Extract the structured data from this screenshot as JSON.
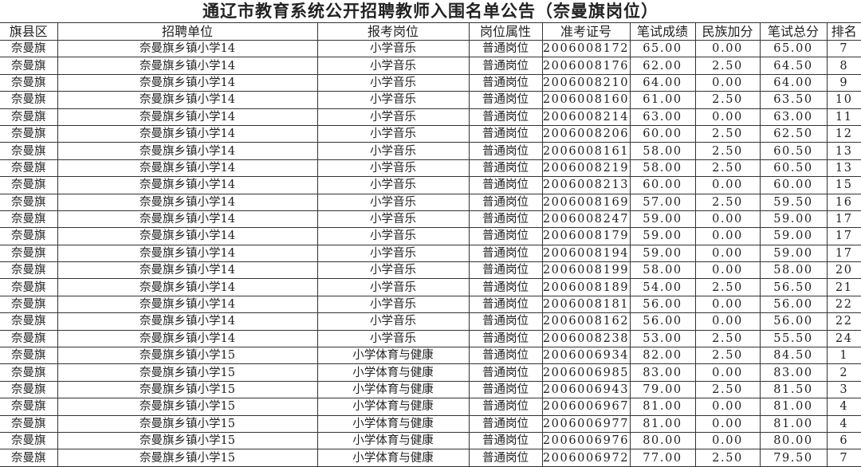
{
  "title": "通辽市教育系统公开招聘教师入围名单公告（奈曼旗岗位）",
  "headers": [
    "旗县区",
    "招聘单位",
    "报考岗位",
    "岗位属性",
    "准考证号",
    "笔试成绩",
    "民族加分",
    "笔试总分",
    "排名"
  ],
  "rows": [
    [
      "奈曼旗",
      "奈曼旗乡镇小学14",
      "小学音乐",
      "普通岗位",
      "2006008172",
      "65.00",
      "0.00",
      "65.00",
      "7"
    ],
    [
      "奈曼旗",
      "奈曼旗乡镇小学14",
      "小学音乐",
      "普通岗位",
      "2006008176",
      "62.00",
      "2.50",
      "64.50",
      "8"
    ],
    [
      "奈曼旗",
      "奈曼旗乡镇小学14",
      "小学音乐",
      "普通岗位",
      "2006008210",
      "64.00",
      "0.00",
      "64.00",
      "9"
    ],
    [
      "奈曼旗",
      "奈曼旗乡镇小学14",
      "小学音乐",
      "普通岗位",
      "2006008160",
      "61.00",
      "2.50",
      "63.50",
      "10"
    ],
    [
      "奈曼旗",
      "奈曼旗乡镇小学14",
      "小学音乐",
      "普通岗位",
      "2006008214",
      "63.00",
      "0.00",
      "63.00",
      "11"
    ],
    [
      "奈曼旗",
      "奈曼旗乡镇小学14",
      "小学音乐",
      "普通岗位",
      "2006008206",
      "60.00",
      "2.50",
      "62.50",
      "12"
    ],
    [
      "奈曼旗",
      "奈曼旗乡镇小学14",
      "小学音乐",
      "普通岗位",
      "2006008161",
      "58.00",
      "2.50",
      "60.50",
      "13"
    ],
    [
      "奈曼旗",
      "奈曼旗乡镇小学14",
      "小学音乐",
      "普通岗位",
      "2006008219",
      "58.00",
      "2.50",
      "60.50",
      "13"
    ],
    [
      "奈曼旗",
      "奈曼旗乡镇小学14",
      "小学音乐",
      "普通岗位",
      "2006008213",
      "60.00",
      "0.00",
      "60.00",
      "15"
    ],
    [
      "奈曼旗",
      "奈曼旗乡镇小学14",
      "小学音乐",
      "普通岗位",
      "2006008169",
      "57.00",
      "2.50",
      "59.50",
      "16"
    ],
    [
      "奈曼旗",
      "奈曼旗乡镇小学14",
      "小学音乐",
      "普通岗位",
      "2006008247",
      "59.00",
      "0.00",
      "59.00",
      "17"
    ],
    [
      "奈曼旗",
      "奈曼旗乡镇小学14",
      "小学音乐",
      "普通岗位",
      "2006008179",
      "59.00",
      "0.00",
      "59.00",
      "17"
    ],
    [
      "奈曼旗",
      "奈曼旗乡镇小学14",
      "小学音乐",
      "普通岗位",
      "2006008194",
      "59.00",
      "0.00",
      "59.00",
      "17"
    ],
    [
      "奈曼旗",
      "奈曼旗乡镇小学14",
      "小学音乐",
      "普通岗位",
      "2006008199",
      "58.00",
      "0.00",
      "58.00",
      "20"
    ],
    [
      "奈曼旗",
      "奈曼旗乡镇小学14",
      "小学音乐",
      "普通岗位",
      "2006008189",
      "54.00",
      "2.50",
      "56.50",
      "21"
    ],
    [
      "奈曼旗",
      "奈曼旗乡镇小学14",
      "小学音乐",
      "普通岗位",
      "2006008181",
      "56.00",
      "0.00",
      "56.00",
      "22"
    ],
    [
      "奈曼旗",
      "奈曼旗乡镇小学14",
      "小学音乐",
      "普通岗位",
      "2006008162",
      "56.00",
      "0.00",
      "56.00",
      "22"
    ],
    [
      "奈曼旗",
      "奈曼旗乡镇小学14",
      "小学音乐",
      "普通岗位",
      "2006008238",
      "53.00",
      "2.50",
      "55.50",
      "24"
    ],
    [
      "奈曼旗",
      "奈曼旗乡镇小学15",
      "小学体育与健康",
      "普通岗位",
      "2006006934",
      "82.00",
      "2.50",
      "84.50",
      "1"
    ],
    [
      "奈曼旗",
      "奈曼旗乡镇小学15",
      "小学体育与健康",
      "普通岗位",
      "2006006985",
      "83.00",
      "0.00",
      "83.00",
      "2"
    ],
    [
      "奈曼旗",
      "奈曼旗乡镇小学15",
      "小学体育与健康",
      "普通岗位",
      "2006006943",
      "79.00",
      "2.50",
      "81.50",
      "3"
    ],
    [
      "奈曼旗",
      "奈曼旗乡镇小学15",
      "小学体育与健康",
      "普通岗位",
      "2006006967",
      "81.00",
      "0.00",
      "81.00",
      "4"
    ],
    [
      "奈曼旗",
      "奈曼旗乡镇小学15",
      "小学体育与健康",
      "普通岗位",
      "2006006977",
      "81.00",
      "0.00",
      "81.00",
      "4"
    ],
    [
      "奈曼旗",
      "奈曼旗乡镇小学15",
      "小学体育与健康",
      "普通岗位",
      "2006006976",
      "80.00",
      "0.00",
      "80.00",
      "6"
    ],
    [
      "奈曼旗",
      "奈曼旗乡镇小学15",
      "小学体育与健康",
      "普通岗位",
      "2006006972",
      "77.00",
      "2.50",
      "79.50",
      "7"
    ]
  ]
}
